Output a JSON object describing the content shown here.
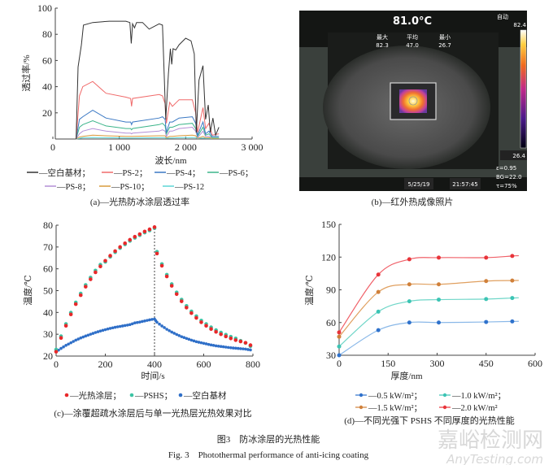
{
  "figure": {
    "caption_cn": "图3　防冰涂层的光热性能",
    "caption_en": "Fig. 3　Photothermal performance of anti-icing coating"
  },
  "watermark": {
    "cn": "嘉峪检测网",
    "en": "AnyTesting.com"
  },
  "thermal_image": {
    "caption": "(b)—红外热成像照片",
    "center_temp": "81.0°C",
    "mode": "自动",
    "scale_max": "82.4",
    "scale_min": "26.4",
    "stats": [
      {
        "label": "最大",
        "value": "82.3"
      },
      {
        "label": "平均",
        "value": "47.0"
      },
      {
        "label": "最小",
        "value": "26.7"
      }
    ],
    "emissivity": "ε=0.95",
    "background": "BG=22.0",
    "transmission": "τ=75%",
    "date": "5/25/19",
    "time": "21:57:45"
  },
  "chart_data": [
    {
      "id": "a",
      "type": "line",
      "caption": "(a)—光热防冰涂层透过率",
      "xlabel": "波长/nm",
      "ylabel": "透过率/%",
      "xlim": [
        0,
        3000
      ],
      "ylim": [
        0,
        100
      ],
      "xticks": [
        "0",
        "1 000",
        "2 000",
        "3 000"
      ],
      "xtick_values": [
        0,
        1000,
        2000,
        3000
      ],
      "yticks": [
        "20",
        "40",
        "60",
        "80",
        "100"
      ],
      "ytick_values": [
        20,
        40,
        60,
        80,
        100
      ],
      "legend_position": "bottom",
      "series": [
        {
          "name": "—空白基材；",
          "color": "#333333",
          "x": [
            350,
            380,
            430,
            460,
            600,
            850,
            1100,
            1160,
            1180,
            1200,
            1230,
            1260,
            1350,
            1450,
            1600,
            1650,
            1700,
            1740,
            1770,
            1790,
            1810,
            1850,
            1900,
            2000,
            2080,
            2130,
            2160,
            2200,
            2260,
            2300,
            2340,
            2370,
            2410,
            2450,
            2500
          ],
          "y": [
            0,
            55,
            72,
            87,
            89,
            90,
            90,
            89,
            73,
            88,
            85,
            89,
            89,
            84,
            88,
            87,
            15,
            50,
            69,
            57,
            69,
            68,
            72,
            77,
            75,
            65,
            5,
            45,
            56,
            15,
            26,
            5,
            16,
            3,
            9
          ]
        },
        {
          "name": "—PS-2；",
          "color": "#f06a6a",
          "x": [
            350,
            400,
            450,
            600,
            800,
            1100,
            1170,
            1185,
            1200,
            1600,
            1650,
            1690,
            1710,
            1760,
            1800,
            1900,
            2100,
            2150,
            2180,
            2260,
            2300,
            2350,
            2400,
            2500
          ],
          "y": [
            0,
            33,
            40,
            44,
            35,
            32,
            31,
            25,
            31,
            34,
            33,
            27,
            12,
            28,
            25,
            30,
            30,
            20,
            5,
            24,
            8,
            12,
            3,
            4
          ]
        },
        {
          "name": "—PS-4；",
          "color": "#3a78c4",
          "x": [
            350,
            400,
            450,
            600,
            800,
            1100,
            1170,
            1185,
            1200,
            1600,
            1650,
            1690,
            1710,
            1760,
            1800,
            1900,
            2100,
            2150,
            2180,
            2260,
            2300,
            2350,
            2400,
            2500
          ],
          "y": [
            0,
            15,
            17,
            22,
            16,
            13,
            13,
            11,
            13,
            16,
            17,
            15,
            5,
            13,
            13,
            16,
            17,
            12,
            3,
            13,
            4,
            6,
            2,
            2
          ]
        },
        {
          "name": "—PS-6；",
          "color": "#3cb58a",
          "x": [
            350,
            400,
            450,
            600,
            800,
            1100,
            1170,
            1185,
            1200,
            1600,
            1650,
            1690,
            1710,
            1760,
            1800,
            1900,
            2100,
            2150,
            2180,
            2260,
            2300,
            2350,
            2400,
            2500
          ],
          "y": [
            0,
            9,
            11,
            14,
            10,
            8,
            8,
            7,
            8,
            11,
            12,
            10,
            4,
            9,
            9,
            11,
            12,
            8,
            2,
            9,
            3,
            4,
            1,
            1
          ]
        },
        {
          "name": "—PS-8；",
          "color": "#b38fd6",
          "x": [
            350,
            400,
            450,
            600,
            800,
            1100,
            1170,
            1185,
            1200,
            1600,
            1650,
            1690,
            1710,
            1760,
            1800,
            1900,
            2100,
            2150,
            2180,
            2260,
            2300,
            2350,
            2400,
            2500
          ],
          "y": [
            0,
            4,
            6,
            8,
            6,
            4.5,
            4.5,
            4,
            4.5,
            6,
            7,
            6,
            2,
            6,
            6,
            8,
            9,
            6,
            1,
            6,
            2,
            2,
            1,
            1
          ]
        },
        {
          "name": "—PS-10；",
          "color": "#d99a3c",
          "x": [
            350,
            400,
            450,
            600,
            800,
            1100,
            1170,
            1185,
            1200,
            1600,
            1650,
            1690,
            1710,
            1760,
            1800,
            1900,
            2100,
            2150,
            2180,
            2260,
            2300,
            2350,
            2400,
            2500
          ],
          "y": [
            0,
            1.5,
            2,
            3,
            2.5,
            2,
            2,
            2,
            2,
            2.5,
            2.5,
            2.5,
            1,
            2,
            2,
            2.5,
            3,
            2.5,
            0.5,
            2,
            1,
            1,
            0.5,
            0.5
          ]
        },
        {
          "name": "—PS-12",
          "color": "#5cd6d6",
          "x": [
            350,
            400,
            450,
            600,
            800,
            1100,
            1170,
            1185,
            1200,
            1600,
            1650,
            1690,
            1710,
            1760,
            1800,
            1900,
            2100,
            2150,
            2180,
            2260,
            2300,
            2350,
            2400,
            2500
          ],
          "y": [
            0,
            0.5,
            1,
            1.2,
            1,
            0.8,
            0.8,
            0.8,
            0.8,
            1,
            1,
            1,
            0.5,
            0.8,
            0.8,
            1,
            1.2,
            1,
            0.3,
            0.8,
            0.5,
            0.5,
            0.3,
            0.3
          ]
        }
      ]
    },
    {
      "id": "c",
      "type": "scatter",
      "caption": "(c)—涂覆超疏水涂层后与单一光热层光热效果对比",
      "xlabel": "时间/s",
      "ylabel": "温度/℃",
      "xlim": [
        0,
        800
      ],
      "ylim": [
        20,
        80
      ],
      "xticks": [
        "0",
        "200",
        "400",
        "600",
        "800"
      ],
      "xtick_values": [
        0,
        200,
        400,
        600,
        800
      ],
      "yticks": [
        "20",
        "30",
        "40",
        "50",
        "60",
        "70",
        "80"
      ],
      "ytick_values": [
        20,
        30,
        40,
        50,
        60,
        70,
        80
      ],
      "annotation_vline_x": 400,
      "legend_position": "bottom",
      "x": [
        0,
        20,
        40,
        60,
        80,
        100,
        120,
        140,
        160,
        180,
        200,
        220,
        240,
        260,
        280,
        300,
        320,
        340,
        360,
        380,
        400,
        410,
        430,
        450,
        470,
        490,
        510,
        530,
        550,
        570,
        590,
        610,
        630,
        650,
        670,
        690,
        710,
        730,
        750,
        770,
        790
      ],
      "series": [
        {
          "name": "—光热涂层；",
          "color": "#e8282a",
          "y": [
            22,
            28.3,
            33.9,
            39.1,
            43.8,
            47.9,
            51.8,
            55.2,
            58.4,
            61.1,
            63.7,
            66.0,
            68.1,
            70.0,
            71.7,
            73.3,
            74.7,
            75.9,
            77.1,
            78.1,
            79.1,
            67.0,
            61.4,
            56.5,
            52.2,
            48.4,
            45.1,
            42.2,
            39.7,
            37.5,
            35.5,
            33.9,
            32.4,
            31.1,
            30.0,
            29.0,
            28.1,
            27.3,
            26.7,
            26.1,
            25.0
          ]
        },
        {
          "name": "—PSHS；",
          "color": "#3cc4a4",
          "y": [
            23,
            29.1,
            34.7,
            39.9,
            44.6,
            48.7,
            52.6,
            56.0,
            59.2,
            61.9,
            63.2,
            65.5,
            67.6,
            69.5,
            71.2,
            72.8,
            74.2,
            75.4,
            76.6,
            77.6,
            78.6,
            67.8,
            62.2,
            57.3,
            53.0,
            49.2,
            45.9,
            43.0,
            40.5,
            38.3,
            36.3,
            34.7,
            33.2,
            31.9,
            30.8,
            29.8,
            28.9,
            28.1,
            27.0,
            26.0,
            24.5
          ]
        },
        {
          "name": "—空白基材",
          "color": "#2f6fc8",
          "y": [
            22,
            23.5,
            24.9,
            26.1,
            27.3,
            28.3,
            29.2,
            30.0,
            30.8,
            31.5,
            32.1,
            32.7,
            33.2,
            33.6,
            34.0,
            34.4,
            35.2,
            35.6,
            36.1,
            36.6,
            37.0,
            35.5,
            33.8,
            32.3,
            31.0,
            29.9,
            28.9,
            28.1,
            27.3,
            26.6,
            26.1,
            25.6,
            25.1,
            24.7,
            24.4,
            24.1,
            23.8,
            23.6,
            23.4,
            23.2,
            22.8
          ]
        }
      ]
    },
    {
      "id": "d",
      "type": "line",
      "caption": "(d)—不同光强下 PSHS 不同厚度的光热性能",
      "xlabel": "厚度/nm",
      "ylabel": "温度/℃",
      "xlim": [
        0,
        600
      ],
      "ylim": [
        30,
        150
      ],
      "xticks": [
        "0",
        "150",
        "300",
        "450",
        "600"
      ],
      "xtick_values": [
        0,
        150,
        300,
        450,
        600
      ],
      "yticks": [
        "30",
        "60",
        "90",
        "120",
        "150"
      ],
      "ytick_values": [
        30,
        60,
        90,
        120,
        150
      ],
      "legend_position": "bottom",
      "x": [
        0,
        120,
        215,
        305,
        450,
        530
      ],
      "series": [
        {
          "name": "—0.5 kW/m²；",
          "color": "#2f72cc",
          "line_color": "#8ab8e8",
          "y": [
            30,
            53,
            60,
            60,
            60.5,
            61
          ]
        },
        {
          "name": "—1.0 kW/m²；",
          "color": "#3cc4b4",
          "line_color": "#6fd6c8",
          "y": [
            38,
            70,
            79.5,
            81,
            81.5,
            82.5
          ]
        },
        {
          "name": "—1.5 kW/m²；",
          "color": "#d0803a",
          "line_color": "#e0a060",
          "y": [
            47,
            88,
            95,
            95,
            98,
            98.5
          ]
        },
        {
          "name": "—2.0 kW/m²",
          "color": "#e8343a",
          "line_color": "#f06068",
          "y": [
            51,
            104,
            118,
            119.5,
            119.5,
            121
          ]
        }
      ]
    }
  ]
}
